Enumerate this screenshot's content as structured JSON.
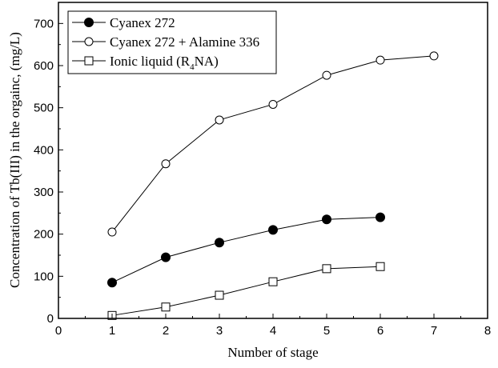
{
  "chart_data": {
    "type": "line",
    "title": "",
    "xlabel": "Number of stage",
    "ylabel": "Concentration of Tb(III) in the orgainc, (mg/L)",
    "xlim": [
      0,
      8
    ],
    "ylim": [
      0,
      750
    ],
    "xticks": [
      "0",
      "1",
      "2",
      "3",
      "4",
      "5",
      "6",
      "7",
      "8"
    ],
    "yticks": [
      "0",
      "100",
      "200",
      "300",
      "400",
      "500",
      "600",
      "700"
    ],
    "legend_position": "top-left",
    "grid": false,
    "series": [
      {
        "name": "Cyanex 272",
        "marker": "filled-circle",
        "x": [
          1,
          2,
          3,
          4,
          5,
          6
        ],
        "y": [
          85,
          145,
          180,
          210,
          235,
          240
        ]
      },
      {
        "name": "Cyanex 272 + Alamine 336",
        "marker": "open-circle",
        "x": [
          1,
          2,
          3,
          4,
          5,
          6,
          7
        ],
        "y": [
          205,
          367,
          471,
          508,
          577,
          613,
          623
        ]
      },
      {
        "name": "Ionic liquid (R4NA)",
        "label_main": "Ionic liquid (R",
        "label_sub": "4",
        "label_tail": "NA)",
        "marker": "open-square",
        "x": [
          1,
          2,
          3,
          4,
          5,
          6
        ],
        "y": [
          7,
          27,
          55,
          87,
          118,
          123
        ]
      }
    ]
  }
}
